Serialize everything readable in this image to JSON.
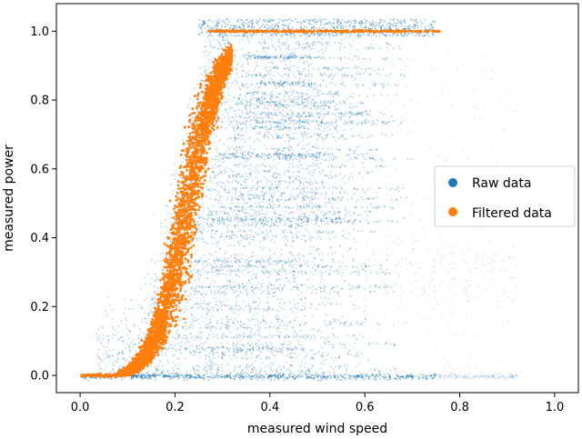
{
  "chart_data": {
    "type": "scatter",
    "xlabel": "measured wind speed",
    "ylabel": "measured power",
    "xlim": [
      -0.05,
      1.05
    ],
    "ylim": [
      -0.05,
      1.08
    ],
    "xticks": [
      0.0,
      0.2,
      0.4,
      0.6,
      0.8,
      1.0
    ],
    "xtick_labels": [
      "0.0",
      "0.2",
      "0.4",
      "0.6",
      "0.8",
      "1.0"
    ],
    "yticks": [
      0.0,
      0.2,
      0.4,
      0.6,
      0.8,
      1.0
    ],
    "ytick_labels": [
      "0.0",
      "0.2",
      "0.4",
      "0.6",
      "0.8",
      "1.0"
    ],
    "grid": false,
    "legend_position": "right",
    "series": [
      {
        "name": "Raw data",
        "color": "#1f77b4",
        "description_points": [
          [
            0.0,
            0.0
          ],
          [
            0.1,
            0.0
          ],
          [
            0.2,
            0.0
          ],
          [
            0.3,
            0.0
          ],
          [
            0.4,
            0.0
          ],
          [
            0.5,
            0.0
          ],
          [
            0.6,
            0.0
          ],
          [
            0.7,
            0.0
          ],
          [
            0.8,
            0.0
          ],
          [
            0.9,
            0.0
          ],
          [
            0.2,
            0.2
          ],
          [
            0.3,
            0.2
          ],
          [
            0.4,
            0.2
          ],
          [
            0.5,
            0.2
          ],
          [
            0.6,
            0.2
          ],
          [
            0.7,
            0.2
          ],
          [
            0.3,
            0.4
          ],
          [
            0.4,
            0.4
          ],
          [
            0.5,
            0.4
          ],
          [
            0.6,
            0.4
          ],
          [
            0.8,
            0.35
          ],
          [
            0.3,
            0.6
          ],
          [
            0.4,
            0.6
          ],
          [
            0.5,
            0.6
          ],
          [
            0.6,
            0.6
          ],
          [
            0.7,
            0.5
          ],
          [
            0.3,
            0.8
          ],
          [
            0.4,
            0.8
          ],
          [
            0.5,
            0.8
          ],
          [
            0.6,
            0.8
          ],
          [
            0.8,
            0.8
          ],
          [
            0.3,
            1.0
          ],
          [
            0.4,
            1.0
          ],
          [
            0.5,
            1.0
          ],
          [
            0.6,
            1.0
          ],
          [
            0.7,
            1.0
          ]
        ]
      },
      {
        "name": "Filtered data",
        "color": "#ff7f0e",
        "curve": [
          [
            0.05,
            0.0
          ],
          [
            0.1,
            0.01
          ],
          [
            0.15,
            0.08
          ],
          [
            0.2,
            0.3
          ],
          [
            0.25,
            0.65
          ],
          [
            0.28,
            0.9
          ],
          [
            0.3,
            0.98
          ],
          [
            0.35,
            1.0
          ],
          [
            0.5,
            1.0
          ],
          [
            0.65,
            1.0
          ],
          [
            0.76,
            1.0
          ]
        ]
      }
    ]
  }
}
